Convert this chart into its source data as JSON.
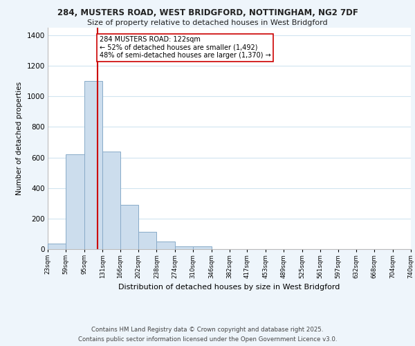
{
  "title_line1": "284, MUSTERS ROAD, WEST BRIDGFORD, NOTTINGHAM, NG2 7DF",
  "title_line2": "Size of property relative to detached houses in West Bridgford",
  "xlabel": "Distribution of detached houses by size in West Bridgford",
  "ylabel": "Number of detached properties",
  "bin_labels": [
    "23sqm",
    "59sqm",
    "95sqm",
    "131sqm",
    "166sqm",
    "202sqm",
    "238sqm",
    "274sqm",
    "310sqm",
    "346sqm",
    "382sqm",
    "417sqm",
    "453sqm",
    "489sqm",
    "525sqm",
    "561sqm",
    "597sqm",
    "632sqm",
    "668sqm",
    "704sqm",
    "740sqm"
  ],
  "bin_edges": [
    23,
    59,
    95,
    131,
    166,
    202,
    238,
    274,
    310,
    346,
    382,
    417,
    453,
    489,
    525,
    561,
    597,
    632,
    668,
    704,
    740
  ],
  "bar_heights": [
    35,
    620,
    1100,
    640,
    290,
    115,
    50,
    20,
    20,
    0,
    0,
    0,
    0,
    0,
    0,
    0,
    0,
    0,
    0,
    0
  ],
  "bar_color": "#ccdded",
  "bar_edge_color": "#88aac8",
  "grid_color": "#d0e4f0",
  "plot_bg_color": "#ffffff",
  "fig_bg_color": "#eef5fb",
  "vline_x": 122,
  "vline_color": "#cc0000",
  "annotation_text": "284 MUSTERS ROAD: 122sqm\n← 52% of detached houses are smaller (1,492)\n48% of semi-detached houses are larger (1,370) →",
  "annotation_box_color": "white",
  "annotation_box_edge": "#cc0000",
  "ylim": [
    0,
    1450
  ],
  "yticks": [
    0,
    200,
    400,
    600,
    800,
    1000,
    1200,
    1400
  ],
  "footer_line1": "Contains HM Land Registry data © Crown copyright and database right 2025.",
  "footer_line2": "Contains public sector information licensed under the Open Government Licence v3.0."
}
